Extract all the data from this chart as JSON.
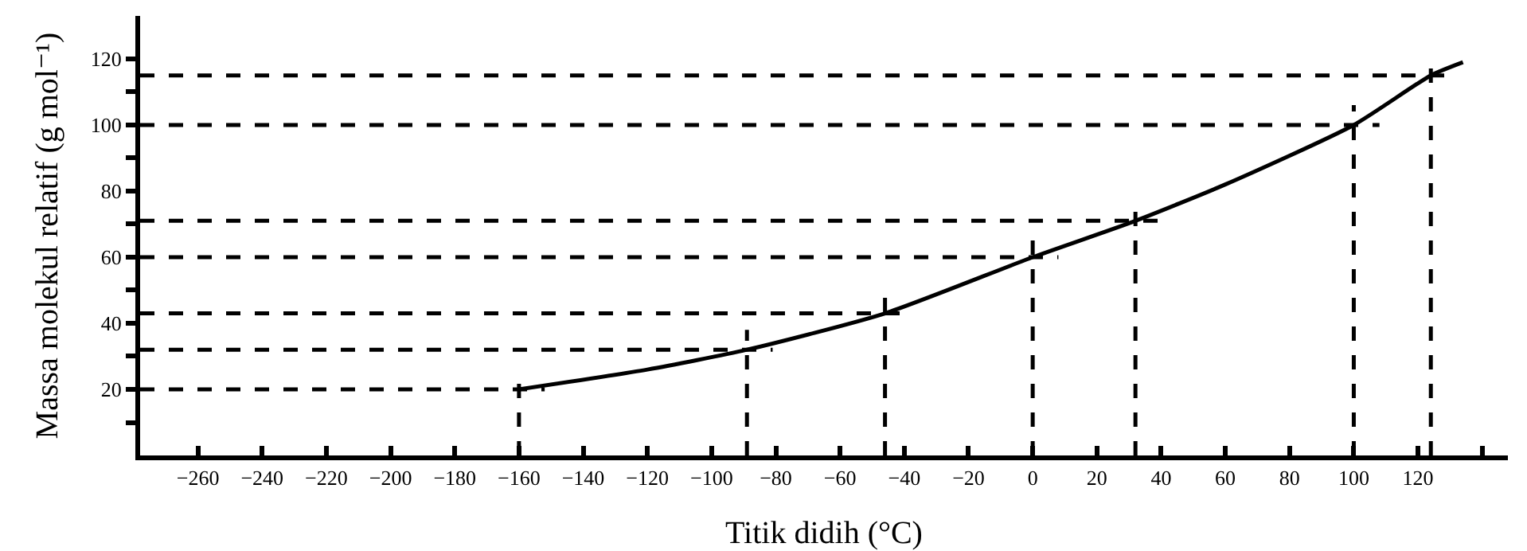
{
  "chart_data": {
    "type": "line",
    "xlabel": "Titik didih (°C)",
    "ylabel": "Massa molekul relatif (g mol⁻¹)",
    "series": [
      {
        "color": "#000000",
        "x": [
          -160,
          -120,
          -89,
          -46,
          0,
          32,
          60,
          100,
          124,
          134
        ],
        "values": [
          20,
          26,
          32,
          43,
          60,
          71,
          82,
          100,
          115,
          119
        ]
      }
    ],
    "xlim": [
      -278,
      148
    ],
    "ylim": [
      0,
      133
    ],
    "xticks": [
      -260,
      -240,
      -220,
      -200,
      -180,
      -160,
      -140,
      -120,
      -100,
      -80,
      -60,
      -40,
      -20,
      0,
      20,
      40,
      60,
      80,
      100,
      120,
      {
        "value": 140,
        "label": null
      }
    ],
    "yticks": [
      {
        "value": 10,
        "label": null
      },
      20,
      {
        "value": 30,
        "label": null
      },
      40,
      {
        "value": 50,
        "label": null
      },
      60,
      {
        "value": 70,
        "label": null
      },
      80,
      {
        "value": 90,
        "label": null
      },
      100,
      {
        "value": 110,
        "label": null
      },
      120
    ],
    "ref_lines": [
      {
        "axis": "y",
        "value": 20,
        "line_style": "dashed",
        "color": "#000000"
      },
      {
        "axis": "y",
        "value": 32,
        "line_style": "dashed",
        "color": "#000000"
      },
      {
        "axis": "y",
        "value": 43,
        "line_style": "dashed",
        "color": "#000000"
      },
      {
        "axis": "y",
        "value": 60,
        "line_style": "dashed",
        "color": "#000000"
      },
      {
        "axis": "y",
        "value": 71,
        "line_style": "dashed",
        "color": "#000000"
      },
      {
        "axis": "y",
        "value": 100,
        "line_style": "dashed",
        "color": "#000000"
      },
      {
        "axis": "y",
        "value": 115,
        "line_style": "dashed",
        "color": "#000000"
      },
      {
        "axis": "x",
        "value": -160,
        "line_style": "dashed",
        "color": "#000000"
      },
      {
        "axis": "x",
        "value": -89,
        "line_style": "dashed",
        "color": "#000000"
      },
      {
        "axis": "x",
        "value": -46,
        "line_style": "dashed",
        "color": "#000000"
      },
      {
        "axis": "x",
        "value": 0,
        "line_style": "dashed",
        "color": "#000000"
      },
      {
        "axis": "x",
        "value": 32,
        "line_style": "dashed",
        "color": "#000000"
      },
      {
        "axis": "x",
        "value": 100,
        "line_style": "dashed",
        "color": "#000000"
      },
      {
        "axis": "x",
        "value": 124,
        "line_style": "dashed",
        "color": "#000000"
      }
    ],
    "grid": false,
    "marker": "none",
    "line_style": "solid"
  }
}
